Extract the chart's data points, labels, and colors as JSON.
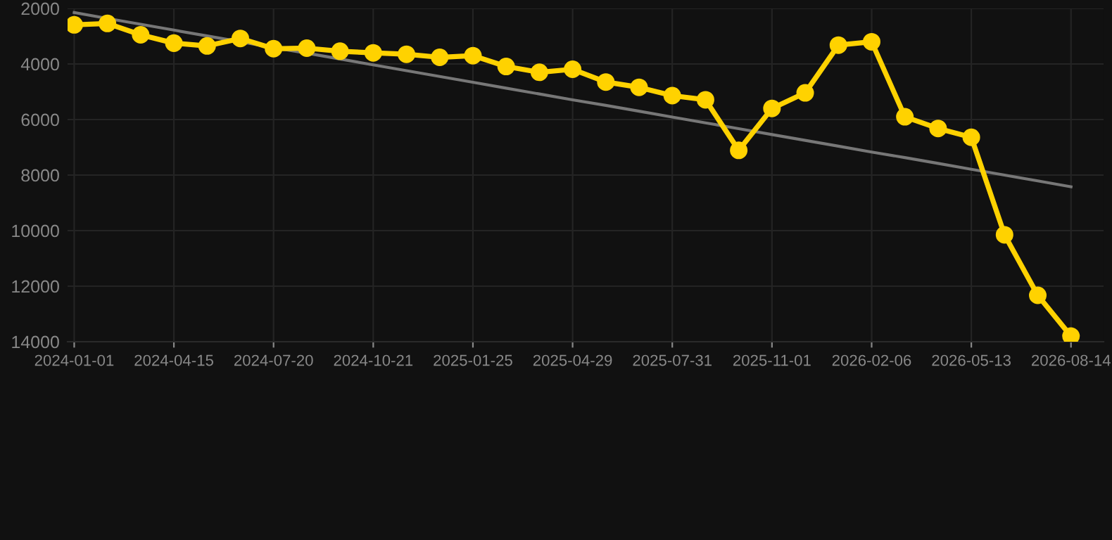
{
  "chart_data": {
    "type": "line",
    "categories": [
      "2024-01-01",
      null,
      null,
      "2024-04-15",
      null,
      null,
      "2024-07-20",
      null,
      null,
      "2024-10-21",
      null,
      null,
      "2025-01-25",
      null,
      null,
      "2025-04-29",
      null,
      null,
      "2025-07-31",
      null,
      null,
      "2025-11-01",
      null,
      null,
      "2026-02-06",
      null,
      null,
      "2026-05-13",
      null,
      null,
      "2026-08-14"
    ],
    "series": [
      {
        "color": "#ffd200",
        "marker": "circle",
        "values": [
          2590,
          2540,
          2950,
          3250,
          3350,
          3080,
          3450,
          3430,
          3540,
          3600,
          3650,
          3760,
          3700,
          4090,
          4300,
          4190,
          4650,
          4840,
          5140,
          5290,
          7110,
          5600,
          5040,
          3320,
          3200,
          5900,
          6320,
          6640,
          10150,
          12330,
          13800
        ]
      },
      {
        "type": "line",
        "color": "#777777",
        "marker": "none",
        "values": [
          2150,
          2360,
          2570,
          2780,
          2990,
          3200,
          3410,
          3610,
          3820,
          4030,
          4240,
          4450,
          4660,
          4870,
          5080,
          5290,
          5490,
          5700,
          5910,
          6120,
          6330,
          6540,
          6750,
          6960,
          7170,
          7370,
          7580,
          7790,
          8000,
          8210,
          8420
        ]
      }
    ],
    "ylim": [
      14000,
      2000
    ],
    "yticks": [
      2000,
      4000,
      6000,
      8000,
      10000,
      12000,
      14000
    ],
    "grid": true,
    "line_style": "solid"
  }
}
